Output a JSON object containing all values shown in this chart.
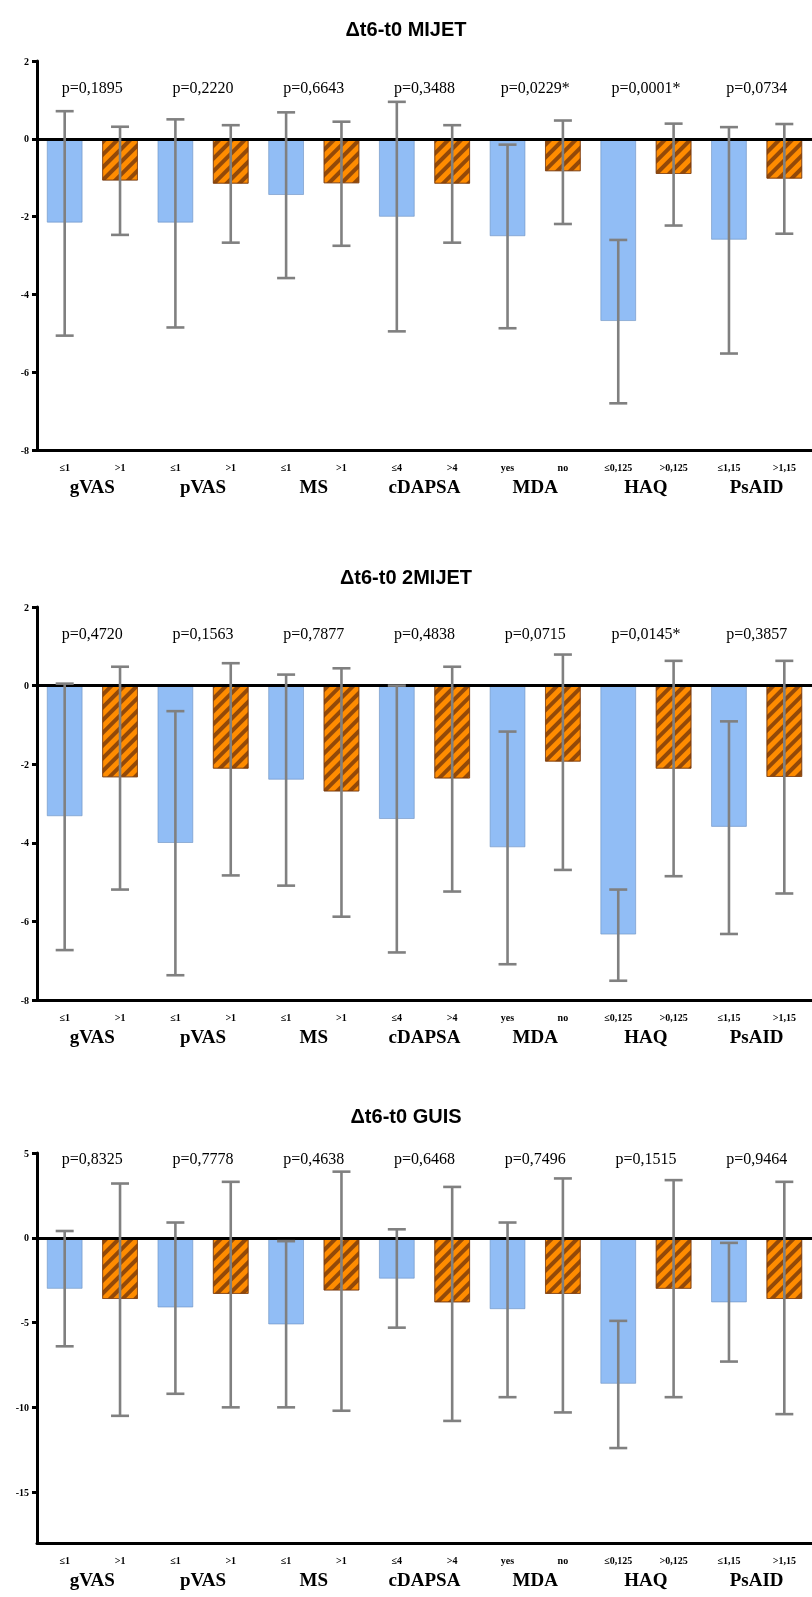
{
  "chart_data": [
    {
      "type": "bar",
      "title": "Δt6-t0 MIJET",
      "categories": [
        "≤1",
        ">1",
        "≤1",
        ">1",
        "≤1",
        ">1",
        "≤4",
        ">4",
        "yes",
        "no",
        "≤0,125",
        ">0,125",
        "≤1,15",
        ">1,15"
      ],
      "values": [
        -2.15,
        -1.07,
        -2.15,
        -1.15,
        -1.44,
        -1.14,
        -2.0,
        -1.15,
        -2.5,
        -0.83,
        -4.68,
        -0.9,
        -2.59,
        -1.02
      ],
      "errors": [
        [
          -5.06,
          0.71
        ],
        [
          -2.47,
          0.31
        ],
        [
          -4.85,
          0.5
        ],
        [
          -2.67,
          0.35
        ],
        [
          -3.58,
          0.68
        ],
        [
          -2.75,
          0.44
        ],
        [
          -4.95,
          0.95
        ],
        [
          -2.67,
          0.35
        ],
        [
          -4.87,
          -0.15
        ],
        [
          -2.19,
          0.47
        ],
        [
          -6.8,
          -2.6
        ],
        [
          -2.23,
          0.39
        ],
        [
          -5.52,
          0.3
        ],
        [
          -2.44,
          0.38
        ]
      ],
      "colors": [
        "#91bdf5",
        "#ff8c00",
        "#91bdf5",
        "#ff8c00",
        "#91bdf5",
        "#ff8c00",
        "#91bdf5",
        "#ff8c00",
        "#91bdf5",
        "#ff8c00",
        "#91bdf5",
        "#ff8c00",
        "#91bdf5",
        "#ff8c00"
      ],
      "ylim": [
        -8,
        2
      ],
      "yticks": [
        -8,
        -6,
        -4,
        -2,
        0,
        2
      ],
      "ref_lines": [
        {
          "axis": "y",
          "value": 0,
          "color": "#000000"
        }
      ],
      "annotations": [
        "p=0,1895",
        "p=0,2220",
        "p=0,6643",
        "p=0,3488",
        "p=0,0229*",
        "p=0,0001*",
        "p=0,0734",
        "gVAS",
        "pVAS",
        "MS",
        "cDAPSA",
        "MDA",
        "HAQ",
        "PsAID"
      ]
    },
    {
      "type": "bar",
      "title": "Δt6-t0 2MIJET",
      "categories": [
        "≤1",
        ">1",
        "≤1",
        ">1",
        "≤1",
        ">1",
        "≤4",
        ">4",
        "yes",
        "no",
        "≤0,125",
        ">0,125",
        "≤1,15",
        ">1,15"
      ],
      "values": [
        -3.32,
        -2.33,
        -4.0,
        -2.11,
        -2.39,
        -2.69,
        -3.39,
        -2.36,
        -4.11,
        -1.93,
        -6.33,
        -2.11,
        -3.59,
        -2.32
      ],
      "errors": [
        [
          -6.73,
          0.05
        ],
        [
          -5.19,
          0.48
        ],
        [
          -7.37,
          -0.65
        ],
        [
          -4.83,
          0.57
        ],
        [
          -5.09,
          0.28
        ],
        [
          -5.88,
          0.44
        ],
        [
          -6.79,
          0.0
        ],
        [
          -5.24,
          0.48
        ],
        [
          -7.09,
          -1.17
        ],
        [
          -4.69,
          0.79
        ],
        [
          -7.51,
          -5.19
        ],
        [
          -4.85,
          0.63
        ],
        [
          -6.32,
          -0.91
        ],
        [
          -5.29,
          0.63
        ]
      ],
      "colors": [
        "#91bdf5",
        "#ff8c00",
        "#91bdf5",
        "#ff8c00",
        "#91bdf5",
        "#ff8c00",
        "#91bdf5",
        "#ff8c00",
        "#91bdf5",
        "#ff8c00",
        "#91bdf5",
        "#ff8c00",
        "#91bdf5",
        "#ff8c00"
      ],
      "ylim": [
        -8,
        2
      ],
      "yticks": [
        -8,
        -6,
        -4,
        -2,
        0,
        2
      ],
      "ref_lines": [
        {
          "axis": "y",
          "value": 0,
          "color": "#000000"
        }
      ],
      "annotations": [
        "p=0,4720",
        "p=0,1563",
        "p=0,7877",
        "p=0,4838",
        "p=0,0715",
        "p=0,0145*",
        "p=0,3857",
        "gVAS",
        "pVAS",
        "MS",
        "cDAPSA",
        "MDA",
        "HAQ",
        "PsAID"
      ]
    },
    {
      "type": "bar",
      "title": "Δt6-t0 GUIS",
      "categories": [
        "≤1",
        ">1",
        "≤1",
        ">1",
        "≤1",
        ">1",
        "≤4",
        ">4",
        "yes",
        "no",
        "≤0,125",
        ">0,125",
        "≤1,15",
        ">1,15"
      ],
      "values": [
        -3.0,
        -3.6,
        -4.1,
        -3.3,
        -5.1,
        -3.1,
        -2.4,
        -3.8,
        -4.2,
        -3.3,
        -8.6,
        -3.0,
        -3.8,
        -3.6
      ],
      "errors": [
        [
          -6.4,
          0.4
        ],
        [
          -10.5,
          3.2
        ],
        [
          -9.2,
          0.9
        ],
        [
          -10.0,
          3.3
        ],
        [
          -10.0,
          -0.2
        ],
        [
          -10.2,
          3.9
        ],
        [
          -5.3,
          0.5
        ],
        [
          -10.8,
          3.0
        ],
        [
          -9.4,
          0.9
        ],
        [
          -10.3,
          3.5
        ],
        [
          -12.4,
          -4.9
        ],
        [
          -9.4,
          3.4
        ],
        [
          -7.3,
          -0.3
        ],
        [
          -10.4,
          3.3
        ]
      ],
      "colors": [
        "#91bdf5",
        "#ff8c00",
        "#91bdf5",
        "#ff8c00",
        "#91bdf5",
        "#ff8c00",
        "#91bdf5",
        "#ff8c00",
        "#91bdf5",
        "#ff8c00",
        "#91bdf5",
        "#ff8c00",
        "#91bdf5",
        "#ff8c00"
      ],
      "ylim": [
        -18,
        5
      ],
      "yticks": [
        -15,
        -10,
        -5,
        0,
        5
      ],
      "ref_lines": [
        {
          "axis": "y",
          "value": 0,
          "color": "#000000"
        }
      ],
      "annotations": [
        "p=0,8325",
        "p=0,7778",
        "p=0,4638",
        "p=0,6468",
        "p=0,7496",
        "p=0,1515",
        "p=0,9464",
        "gVAS",
        "pVAS",
        "MS",
        "cDAPSA",
        "MDA",
        "HAQ",
        "PsAID"
      ]
    }
  ]
}
